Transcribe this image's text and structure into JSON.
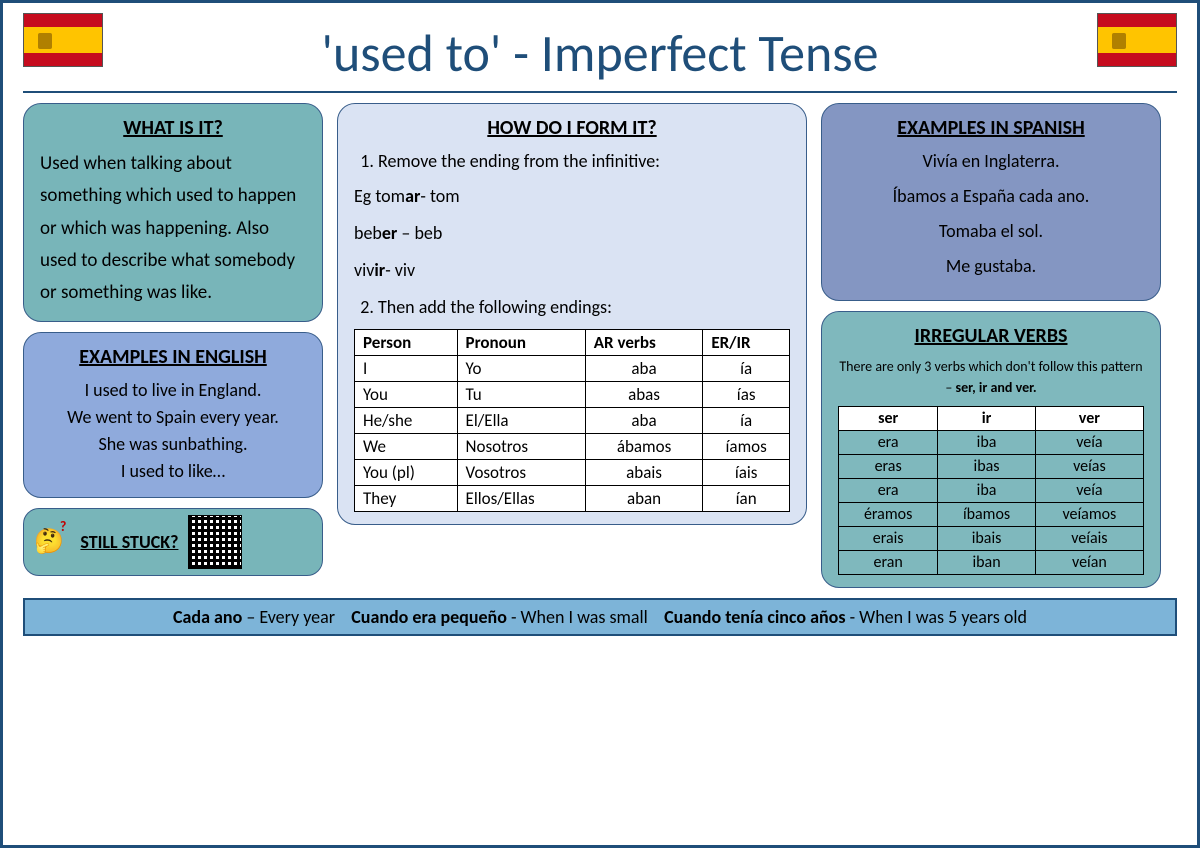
{
  "title": "'used to' - Imperfect Tense",
  "what": {
    "heading": "WHAT IS IT?",
    "text": "Used when talking about something which used to happen or which was happening. Also used to describe what somebody or something was like."
  },
  "examples_en": {
    "heading": "EXAMPLES IN ENGLISH",
    "lines": [
      "I used to live in England.",
      "We went to Spain every year.",
      "She was sunbathing.",
      "I used to like…"
    ]
  },
  "stuck": {
    "heading": "STILL STUCK?"
  },
  "how": {
    "heading": "HOW DO I FORM IT?",
    "step1": "Remove the ending from the infinitive:",
    "ex1_pre": "Eg tom",
    "ex1_bold": "ar",
    "ex1_post": "- tom",
    "ex2_pre": "beb",
    "ex2_bold": "er",
    "ex2_post": " – beb",
    "ex3_pre": "viv",
    "ex3_bold": "ir",
    "ex3_post": "- viv",
    "step2": "Then add the following endings:",
    "table": {
      "headers": [
        "Person",
        "Pronoun",
        "AR verbs",
        "ER/IR"
      ],
      "rows": [
        [
          "I",
          "Yo",
          "aba",
          "ía"
        ],
        [
          "You",
          "Tu",
          "abas",
          "ías"
        ],
        [
          "He/she",
          "El/Ella",
          "aba",
          "ía"
        ],
        [
          "We",
          "Nosotros",
          "ábamos",
          "íamos"
        ],
        [
          "You (pl)",
          "Vosotros",
          "abais",
          "íais"
        ],
        [
          "They",
          "Ellos/Ellas",
          "aban",
          "ían"
        ]
      ]
    }
  },
  "examples_sp": {
    "heading": "EXAMPLES IN SPANISH",
    "lines": [
      "Vivía en Inglaterra.",
      "Íbamos a España cada ano.",
      "Tomaba el sol.",
      "Me gustaba."
    ]
  },
  "irregular": {
    "heading": "IRREGULAR VERBS",
    "intro_pre": "There are only 3 verbs which don't follow this pattern – ",
    "intro_bold": "ser, ir and ver.",
    "headers": [
      "ser",
      "ir",
      "ver"
    ],
    "rows": [
      [
        "era",
        "iba",
        "veía"
      ],
      [
        "eras",
        "ibas",
        "veías"
      ],
      [
        "era",
        "iba",
        "veía"
      ],
      [
        "éramos",
        "íbamos",
        "veíamos"
      ],
      [
        "erais",
        "ibais",
        "veíais"
      ],
      [
        "eran",
        "iban",
        "veían"
      ]
    ]
  },
  "footer": {
    "p1b": "Cada ano",
    "p1": " – Every year",
    "p2b": "Cuando era pequeño",
    "p2": " -  When I was small",
    "p3b": "Cuando tenía cinco años",
    "p3": " - When I was 5 years old"
  },
  "colors": {
    "border": "#1f4e79",
    "teal": "#78b5b9",
    "blue1": "#8faadc",
    "blue2": "#8496c2",
    "lblue": "#dae3f3",
    "teal2": "#7fb8bd",
    "footer": "#7db4d8"
  }
}
